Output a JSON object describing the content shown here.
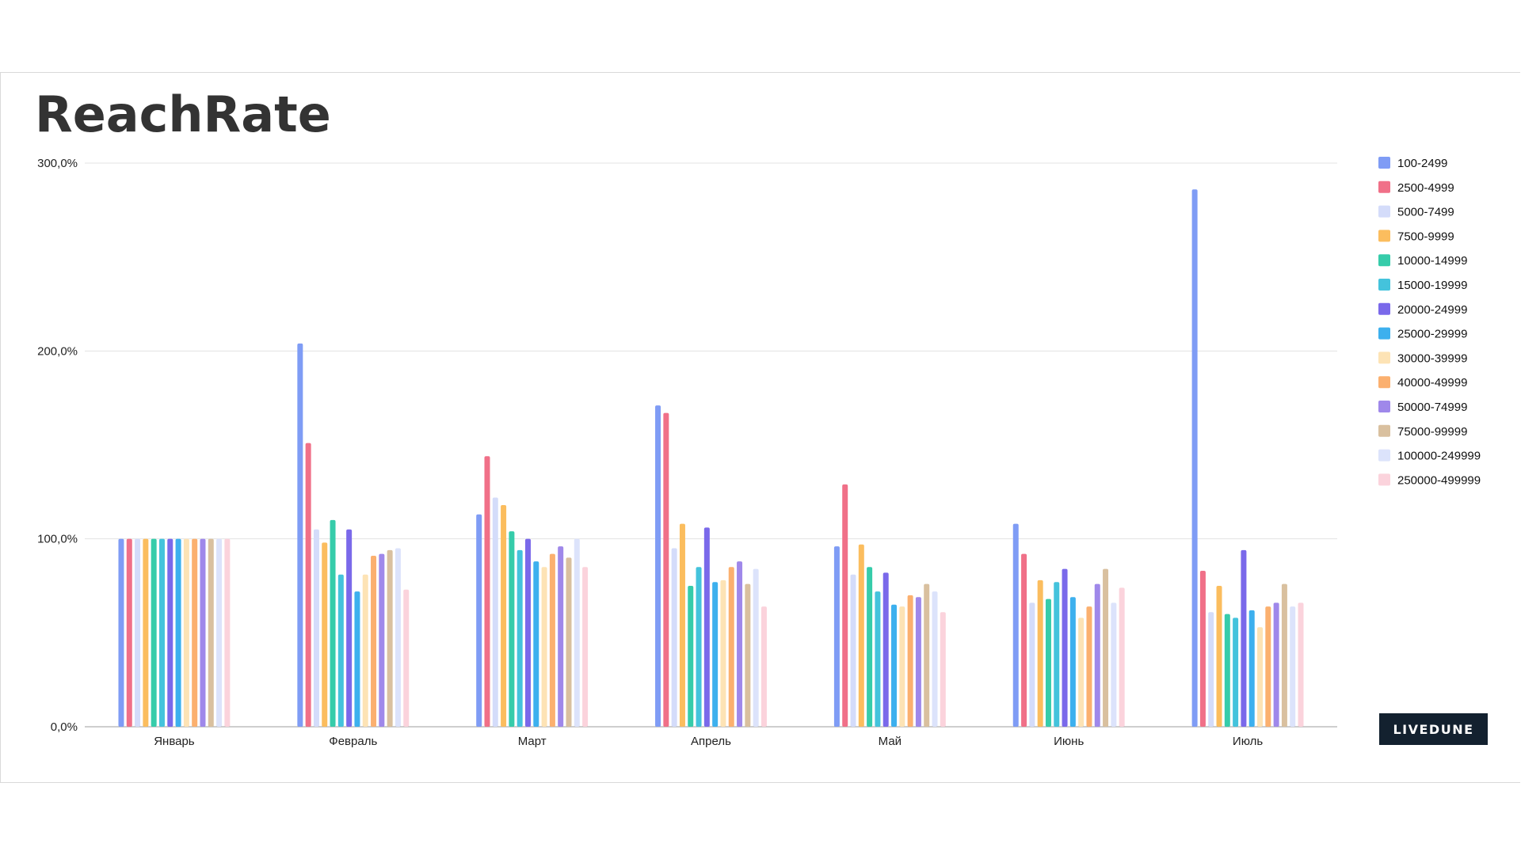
{
  "title": "ReachRate",
  "brand": "LIVEDUNE",
  "chart_data": {
    "type": "bar",
    "title": "ReachRate",
    "xlabel": "",
    "ylabel": "",
    "ylim": [
      0,
      300
    ],
    "y_ticks": [
      "0,0%",
      "100,0%",
      "200,0%",
      "300,0%"
    ],
    "grid": true,
    "legend_position": "right",
    "categories": [
      "Январь",
      "Февраль",
      "Март",
      "Апрель",
      "Май",
      "Июнь",
      "Июль"
    ],
    "series": [
      {
        "name": "100-2499",
        "color": "#7f9cf5",
        "values": [
          100,
          204,
          113,
          171,
          96,
          108,
          286
        ]
      },
      {
        "name": "2500-4999",
        "color": "#f07088",
        "values": [
          100,
          151,
          144,
          167,
          129,
          92,
          83
        ]
      },
      {
        "name": "5000-7499",
        "color": "#d4dcfa",
        "values": [
          100,
          105,
          122,
          95,
          81,
          66,
          61
        ]
      },
      {
        "name": "7500-9999",
        "color": "#fbbd5e",
        "values": [
          100,
          98,
          118,
          108,
          97,
          78,
          75
        ]
      },
      {
        "name": "10000-14999",
        "color": "#36ccaa",
        "values": [
          100,
          110,
          104,
          75,
          85,
          68,
          60
        ]
      },
      {
        "name": "15000-19999",
        "color": "#44c3dc",
        "values": [
          100,
          81,
          94,
          85,
          72,
          77,
          58
        ]
      },
      {
        "name": "20000-24999",
        "color": "#7a69ea",
        "values": [
          100,
          105,
          100,
          106,
          82,
          84,
          94
        ]
      },
      {
        "name": "25000-29999",
        "color": "#3db0ee",
        "values": [
          100,
          72,
          88,
          77,
          65,
          69,
          62
        ]
      },
      {
        "name": "30000-39999",
        "color": "#fde3b5",
        "values": [
          100,
          81,
          85,
          78,
          64,
          58,
          53
        ]
      },
      {
        "name": "40000-49999",
        "color": "#fbb06f",
        "values": [
          100,
          91,
          92,
          85,
          70,
          64,
          64
        ]
      },
      {
        "name": "50000-74999",
        "color": "#9f88ea",
        "values": [
          100,
          92,
          96,
          88,
          69,
          76,
          66
        ]
      },
      {
        "name": "75000-99999",
        "color": "#d9c09f",
        "values": [
          100,
          94,
          90,
          76,
          76,
          84,
          76
        ]
      },
      {
        "name": "100000-249999",
        "color": "#dce3fb",
        "values": [
          100,
          95,
          100,
          84,
          72,
          66,
          64
        ]
      },
      {
        "name": "250000-499999",
        "color": "#fbd3dc",
        "values": [
          100,
          73,
          85,
          64,
          61,
          74,
          66
        ]
      }
    ]
  }
}
